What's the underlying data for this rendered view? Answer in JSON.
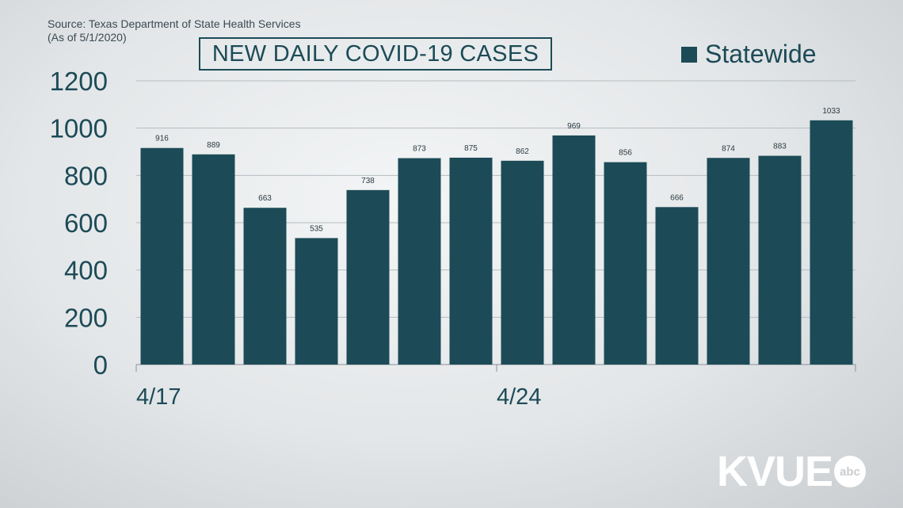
{
  "source": {
    "line1": "Source: Texas Department of State Health Services",
    "line2": "(As of 5/1/2020)"
  },
  "logo": {
    "text": "KVUE",
    "badge": "abc"
  },
  "colors": {
    "bar": "#1c4b57",
    "grid": "#b5bcc0",
    "axis_text": "#1c4b57"
  },
  "chart_data": {
    "type": "bar",
    "title": "NEW DAILY COVID-19 CASES",
    "legend": {
      "label": "Statewide",
      "position": "top-right"
    },
    "x_tick_labels": [
      {
        "label": "4/17",
        "index": 0
      },
      {
        "label": "4/24",
        "index": 7
      }
    ],
    "values": [
      916,
      889,
      663,
      535,
      738,
      873,
      875,
      862,
      969,
      856,
      666,
      874,
      883,
      1033
    ],
    "ylim": [
      0,
      1200
    ],
    "yticks": [
      0,
      200,
      400,
      600,
      800,
      1000,
      1200
    ],
    "grid": true,
    "data_labels": true
  }
}
